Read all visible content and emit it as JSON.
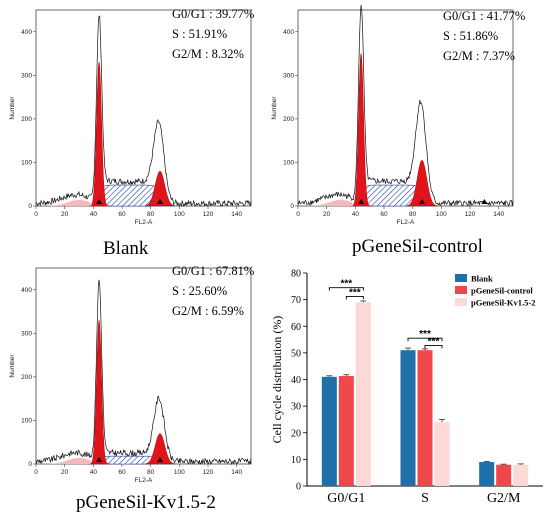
{
  "panels": [
    {
      "title": "Blank",
      "stats": {
        "g0g1": "G0/G1 : 39.77%",
        "s": "S : 51.91%",
        "g2m": "G2/M : 8.32%"
      },
      "g1_peak": 330,
      "g2_peak": 80
    },
    {
      "title": "pGeneSil-control",
      "stats": {
        "g0g1": "G0/G1 : 41.77%",
        "s": "S : 51.86%",
        "g2m": "G2/M : 7.37%"
      },
      "g1_peak": 350,
      "g2_peak": 105
    },
    {
      "title": "pGeneSil-Kv1.5-2",
      "stats": {
        "g0g1": "G0/G1 : 67.81%",
        "s": "S : 25.60%",
        "g2m": "G2/M : 6.59%"
      },
      "g1_peak": 330,
      "g2_peak": 70
    }
  ],
  "histogram_axis": {
    "xlabel": "FL2-A",
    "ylabel": "Number",
    "xticks": [
      "0",
      "20",
      "40",
      "60",
      "80",
      "100",
      "120",
      "140"
    ],
    "yticks": [
      "0",
      "100",
      "200",
      "300",
      "400"
    ]
  },
  "chart_data": [
    {
      "type": "bar",
      "title": "",
      "xlabel": "",
      "ylabel": "Cell cycle distribution (%)",
      "ylim": [
        0,
        80
      ],
      "yticks": [
        "0",
        "10",
        "20",
        "30",
        "40",
        "50",
        "60",
        "70",
        "80"
      ],
      "categories": [
        "G0/G1",
        "S",
        "G2/M"
      ],
      "series": [
        {
          "name": "Blank",
          "color": "#1f6fa8",
          "values": [
            41,
            51,
            9
          ],
          "errors": [
            0.4,
            0.8,
            0.2
          ]
        },
        {
          "name": "pGeneSil-control",
          "color": "#f0474a",
          "values": [
            41.3,
            51,
            8
          ],
          "errors": [
            0.5,
            0.5,
            0.2
          ]
        },
        {
          "name": "pGeneSil-Kv1.5-2",
          "color": "#fcd9d6",
          "values": [
            69,
            24,
            8
          ],
          "errors": [
            0.5,
            1,
            0.3
          ]
        }
      ],
      "legend_position": "top-right",
      "significance": [
        {
          "category": "G0/G1",
          "label": "***"
        },
        {
          "category": "G0/G1",
          "label": "***"
        },
        {
          "category": "S",
          "label": "***"
        },
        {
          "category": "S",
          "label": "***"
        }
      ]
    }
  ]
}
